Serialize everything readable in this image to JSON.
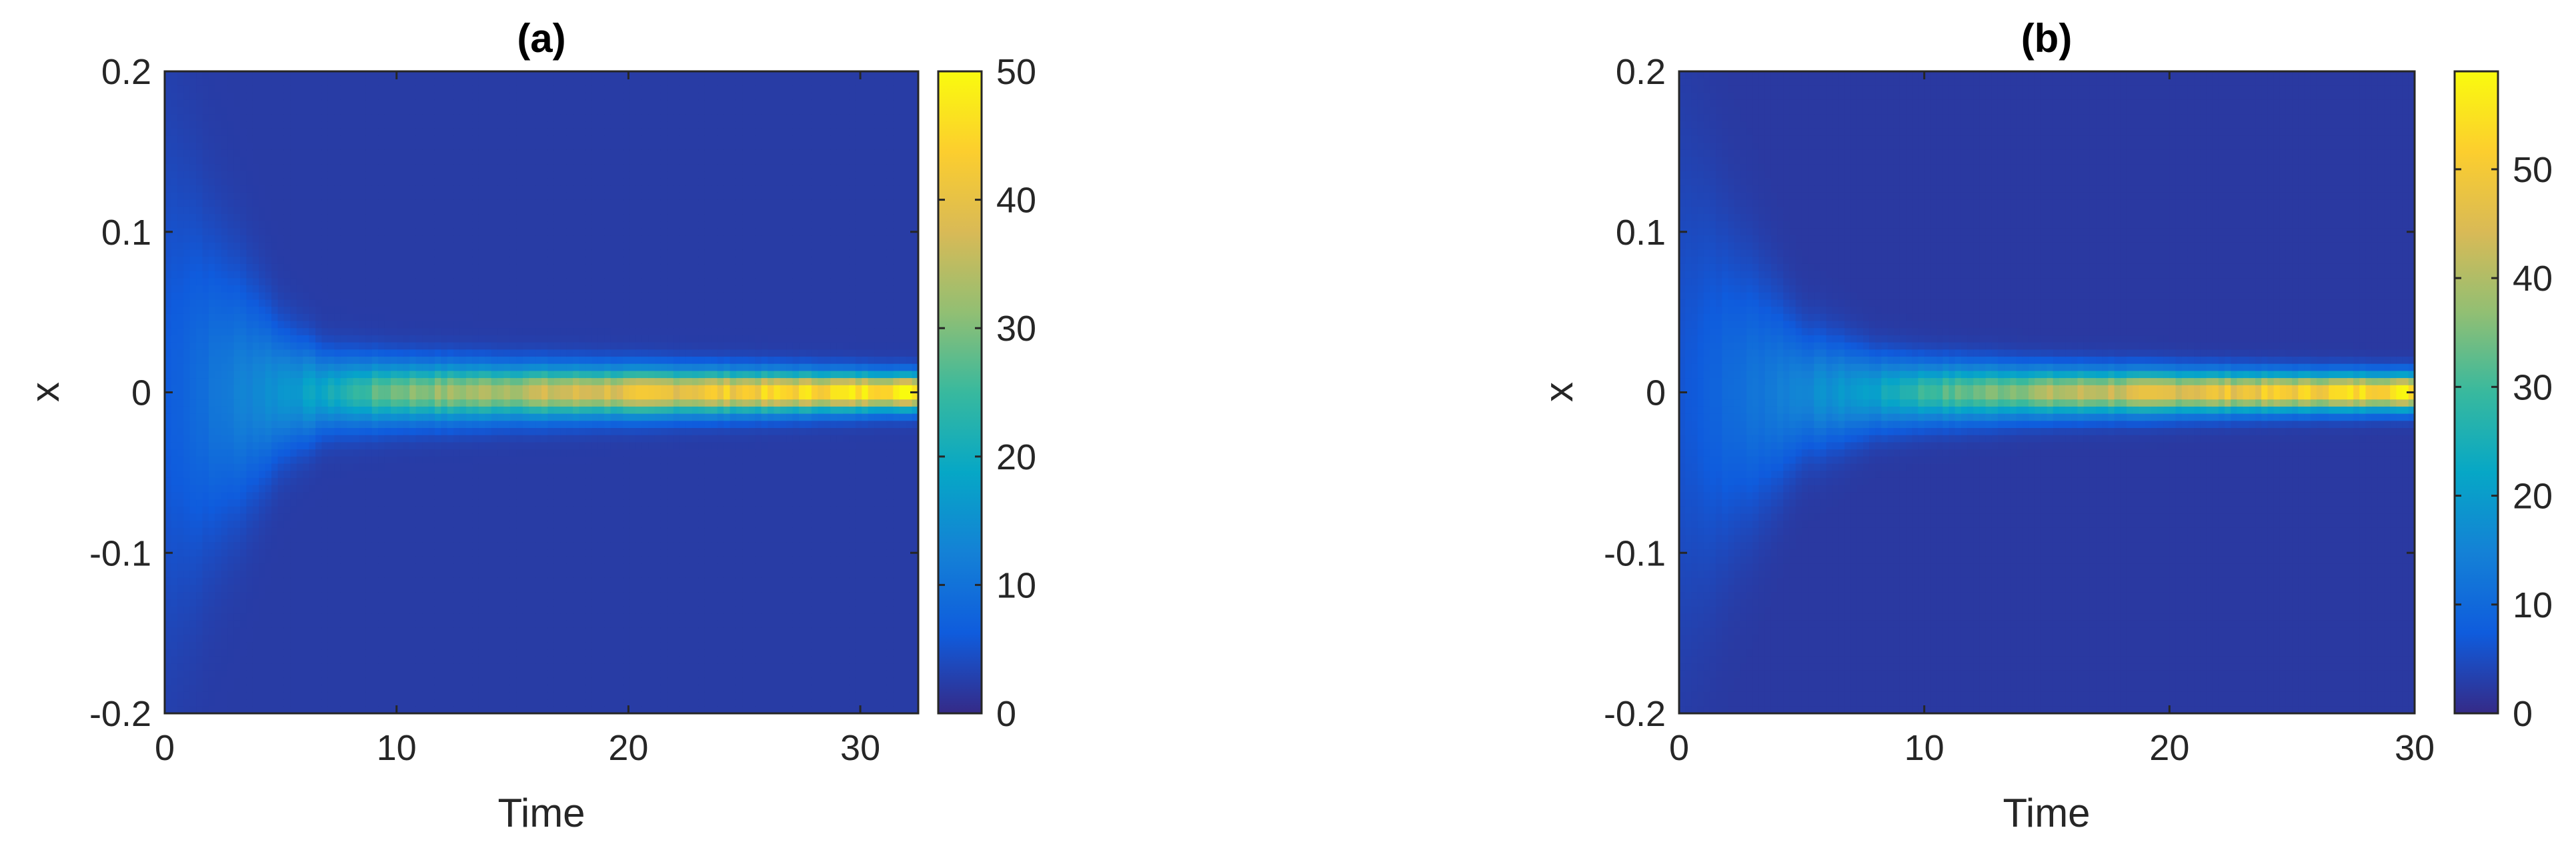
{
  "chart_data": [
    {
      "type": "heatmap",
      "title": "(a)",
      "xlabel": "Time",
      "ylabel": "x",
      "xlim": [
        0,
        32.5
      ],
      "ylim": [
        -0.2,
        0.2
      ],
      "xticks": [
        "0",
        "10",
        "20",
        "30"
      ],
      "xtick_values": [
        0,
        10,
        20,
        30
      ],
      "yticks": [
        "0.2",
        "0.1",
        "0",
        "-0.1",
        "-0.2"
      ],
      "ytick_values": [
        0.2,
        0.1,
        0,
        -0.1,
        -0.2
      ],
      "colorbar": {
        "colormap": "parula",
        "range": [
          0,
          50
        ],
        "ticks": [
          "0",
          "10",
          "20",
          "30",
          "40",
          "50"
        ],
        "tick_values": [
          0,
          10,
          20,
          30,
          40,
          50
        ]
      },
      "density": {
        "description_values": "peak density grows along x=0 over time",
        "time_points": [
          0,
          2,
          5,
          7,
          10,
          15,
          20,
          25,
          30,
          32.5
        ],
        "peak_values": [
          4,
          8,
          14,
          18,
          28,
          33,
          38,
          42,
          46,
          49
        ],
        "spread_width_x": [
          0.2,
          0.12,
          0.05,
          0.03,
          0.025,
          0.022,
          0.02,
          0.018,
          0.016,
          0.015
        ]
      }
    },
    {
      "type": "heatmap",
      "title": "(b)",
      "xlabel": "Time",
      "ylabel": "x",
      "xlim": [
        0,
        30
      ],
      "ylim": [
        -0.2,
        0.2
      ],
      "xticks": [
        "0",
        "10",
        "20",
        "30"
      ],
      "xtick_values": [
        0,
        10,
        20,
        30
      ],
      "yticks": [
        "0.2",
        "0.1",
        "0",
        "-0.1",
        "-0.2"
      ],
      "ytick_values": [
        0.2,
        0.1,
        0,
        -0.1,
        -0.2
      ],
      "colorbar": {
        "colormap": "parula",
        "range": [
          0,
          59
        ],
        "ticks": [
          "0",
          "10",
          "20",
          "30",
          "40",
          "50"
        ],
        "tick_values": [
          0,
          10,
          20,
          30,
          40,
          50
        ]
      },
      "density": {
        "time_points": [
          0,
          2,
          5,
          8,
          10,
          15,
          20,
          25,
          30
        ],
        "peak_values": [
          4,
          8,
          14,
          20,
          28,
          38,
          45,
          50,
          56
        ],
        "spread_width_x": [
          0.2,
          0.12,
          0.05,
          0.03,
          0.025,
          0.02,
          0.018,
          0.016,
          0.015
        ]
      }
    }
  ]
}
